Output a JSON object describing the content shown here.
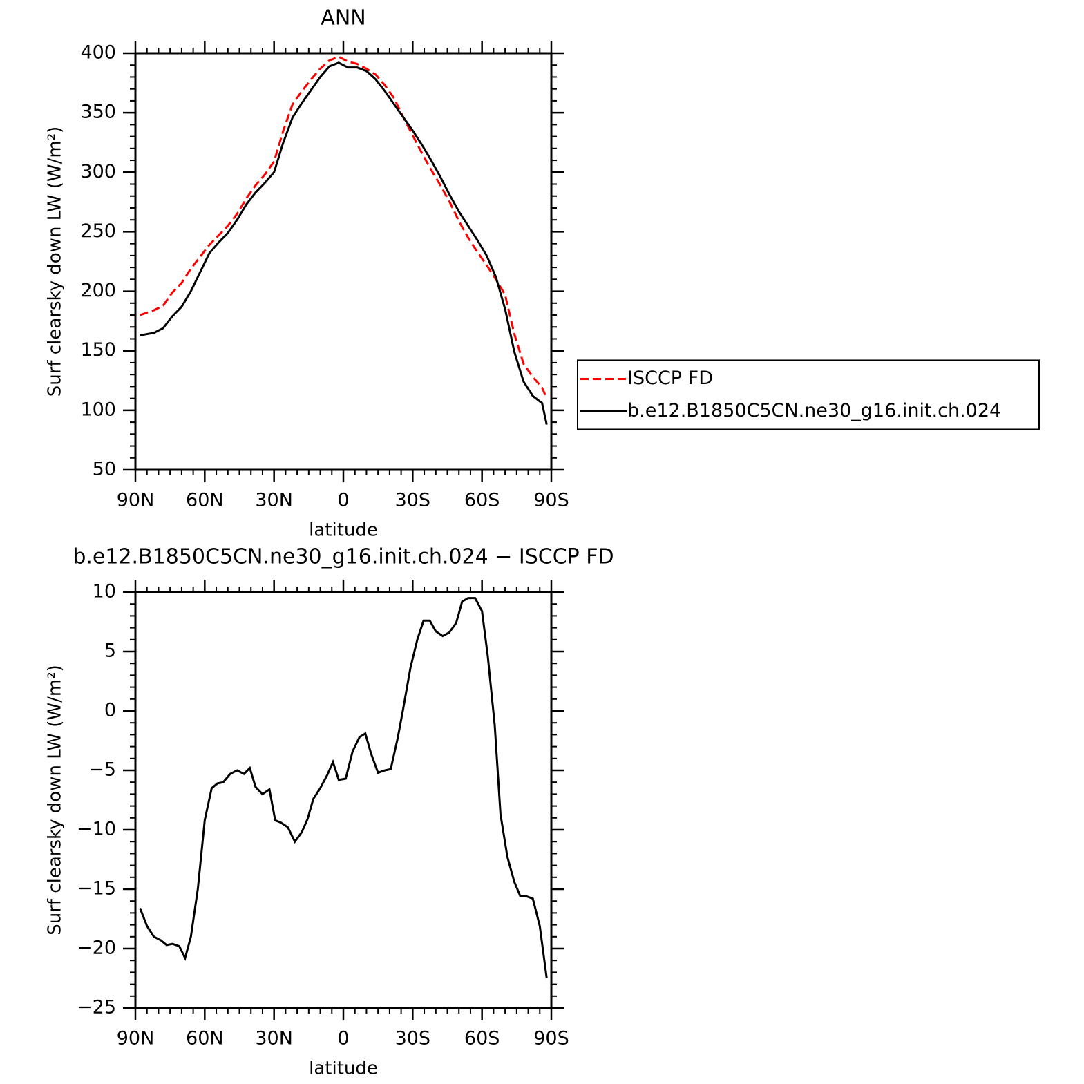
{
  "chart_data": [
    {
      "type": "line",
      "title": "ANN",
      "xlabel": "latitude",
      "ylabel": "Surf clearsky down LW (W/m²)",
      "x": [
        88,
        82,
        78,
        74,
        70,
        66,
        62,
        58,
        54,
        50,
        46,
        42,
        38,
        34,
        30,
        26,
        22,
        18,
        14,
        10,
        6,
        2,
        -2,
        -6,
        -10,
        -14,
        -18,
        -22,
        -26,
        -30,
        -34,
        -38,
        -42,
        -46,
        -50,
        -54,
        -58,
        -62,
        -66,
        -70,
        -74,
        -78,
        -82,
        -86,
        -88
      ],
      "series": [
        {
          "name": "ISCCP FD",
          "color": "#ff0000",
          "dash": true,
          "values": [
            180,
            184,
            188,
            199,
            207,
            219,
            229,
            239,
            247,
            255,
            265,
            278,
            289,
            298,
            309,
            335,
            357,
            368,
            378,
            387,
            394,
            397,
            393,
            391,
            387,
            382,
            373,
            362,
            346,
            331,
            316,
            302,
            289,
            275,
            259,
            245,
            233,
            222,
            210,
            197,
            164,
            139,
            128,
            119,
            110
          ]
        },
        {
          "name": "b.e12.B1850C5CN.ne30_g16.init.ch.024",
          "color": "#000000",
          "dash": false,
          "values": [
            163,
            165,
            169,
            179,
            187,
            200,
            216,
            232,
            241,
            249,
            260,
            273,
            283,
            291,
            300,
            325,
            346,
            358,
            369,
            380,
            389,
            392,
            388,
            388,
            385,
            378,
            368,
            357,
            346,
            335,
            323,
            310,
            296,
            281,
            267,
            255,
            243,
            230,
            212,
            185,
            149,
            124,
            112,
            106,
            88
          ]
        }
      ],
      "xlim": [
        90,
        -90
      ],
      "ylim": [
        50,
        400
      ],
      "xticks": [
        {
          "value": 90,
          "label": "90N"
        },
        {
          "value": 60,
          "label": "60N"
        },
        {
          "value": 30,
          "label": "30N"
        },
        0,
        {
          "value": -30,
          "label": "30S"
        },
        {
          "value": -60,
          "label": "60S"
        },
        {
          "value": -90,
          "label": "90S"
        }
      ],
      "yticks": [
        50,
        100,
        150,
        200,
        250,
        300,
        350,
        400
      ],
      "legend": "right"
    },
    {
      "type": "line",
      "title": "b.e12.B1850C5CN.ne30_g16.init.ch.024 − ISCCP FD",
      "xlabel": "latitude",
      "ylabel": "Surf clearsky down LW (W/m²)",
      "x": [
        88,
        85,
        82,
        79,
        76.5,
        74,
        71,
        68.5,
        66,
        63,
        60,
        57,
        54.5,
        52,
        49,
        46,
        43,
        40.5,
        38,
        35,
        32,
        29.5,
        27,
        24,
        21,
        18,
        15.5,
        13,
        10,
        7,
        4.5,
        2,
        -1,
        -4,
        -7,
        -9.5,
        -12,
        -15,
        -18,
        -20.5,
        -23.5,
        -26,
        -29,
        -32,
        -34.7,
        -37.4,
        -40,
        -43,
        -45.8,
        -48.8,
        -51.4,
        -54,
        -57,
        -60,
        -62.5,
        -65.5,
        -68,
        -71,
        -74,
        -76.6,
        -79.3,
        -82,
        -85,
        -88
      ],
      "series": [
        {
          "color": "#000000",
          "dash": false,
          "values": [
            -16.6,
            -18.1,
            -19.0,
            -19.3,
            -19.7,
            -19.6,
            -19.8,
            -20.8,
            -19.0,
            -15.0,
            -9.2,
            -6.5,
            -6.1,
            -6.0,
            -5.3,
            -5.0,
            -5.3,
            -4.8,
            -6.4,
            -7.0,
            -6.6,
            -9.2,
            -9.4,
            -9.8,
            -11.0,
            -10.2,
            -9.1,
            -7.4,
            -6.5,
            -5.4,
            -4.3,
            -5.8,
            -5.7,
            -3.4,
            -2.2,
            -1.9,
            -3.6,
            -5.2,
            -5.0,
            -4.9,
            -2.3,
            0.3,
            3.6,
            6.0,
            7.6,
            7.6,
            6.7,
            6.3,
            6.6,
            7.4,
            9.2,
            9.5,
            9.5,
            8.4,
            4.6,
            -1.2,
            -8.7,
            -12.3,
            -14.4,
            -15.6,
            -15.6,
            -15.8,
            -18.1,
            -22.5
          ]
        }
      ],
      "xlim": [
        90,
        -90
      ],
      "ylim": [
        -25,
        10
      ],
      "xticks": [
        {
          "value": 90,
          "label": "90N"
        },
        {
          "value": 60,
          "label": "60N"
        },
        {
          "value": 30,
          "label": "30N"
        },
        0,
        {
          "value": -30,
          "label": "30S"
        },
        {
          "value": -60,
          "label": "60S"
        },
        {
          "value": -90,
          "label": "90S"
        }
      ],
      "yticks": [
        {
          "value": -25,
          "label": "−25"
        },
        {
          "value": -20,
          "label": "−20"
        },
        {
          "value": -15,
          "label": "−15"
        },
        {
          "value": -10,
          "label": "−10"
        },
        {
          "value": -5,
          "label": "−5"
        },
        0,
        5,
        10
      ]
    }
  ]
}
